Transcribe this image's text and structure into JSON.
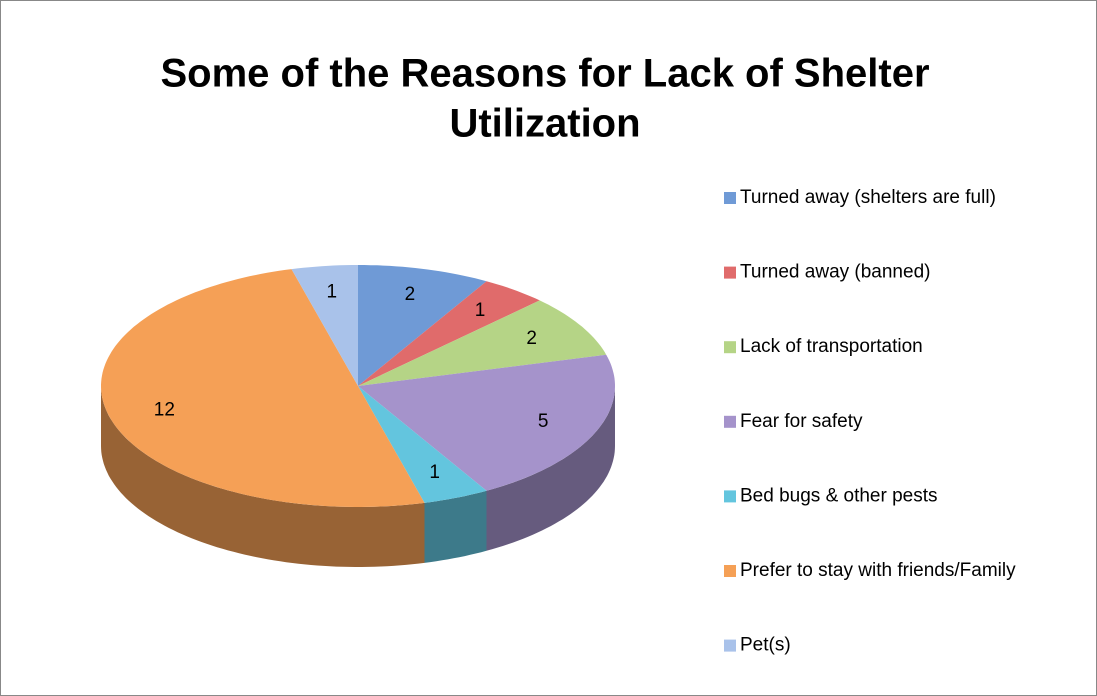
{
  "chart_data": {
    "type": "pie3d",
    "title": [
      "Some of the Reasons for Lack of Shelter",
      "Utilization"
    ],
    "categories": [
      "Turned away (shelters are full)",
      "Turned away (banned)",
      "Lack of transportation",
      "Fear for safety",
      "Bed bugs & other pests",
      "Prefer to stay with friends/Family",
      "Pet(s)"
    ],
    "values": [
      2,
      1,
      2,
      5,
      1,
      12,
      1
    ],
    "colors": [
      "#6f9ad6",
      "#e06b6b",
      "#b5d486",
      "#a593cb",
      "#63c5de",
      "#f5a056",
      "#a9c2ea"
    ],
    "legend": "right"
  }
}
